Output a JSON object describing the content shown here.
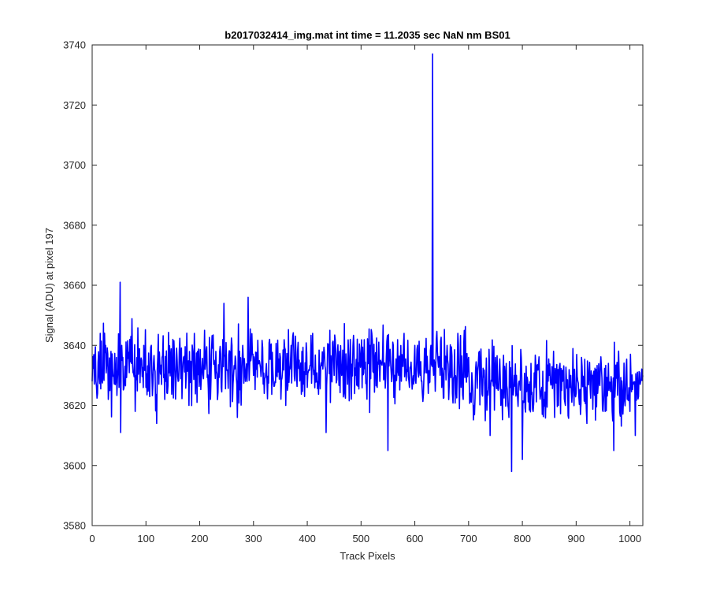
{
  "window": {
    "background": "#ffffff"
  },
  "chart_data": {
    "type": "line",
    "title": "b2017032414_img.mat int time = 11.2035 sec  NaN nm BS01",
    "xlabel": "Track Pixels",
    "ylabel": "Signal (ADU) at pixel 197",
    "xlim": [
      0,
      1024
    ],
    "ylim": [
      3580,
      3740
    ],
    "xticks": [
      0,
      100,
      200,
      300,
      400,
      500,
      600,
      700,
      800,
      900,
      1000
    ],
    "yticks": [
      3580,
      3600,
      3620,
      3640,
      3660,
      3680,
      3700,
      3720,
      3740
    ],
    "grid": false,
    "legend": "none",
    "series": [
      {
        "color": "#0000ff",
        "description_points": {
          "x": [
            0,
            5,
            10,
            15,
            20,
            25,
            30,
            35,
            40,
            45,
            50,
            52,
            53,
            55,
            60,
            70,
            80,
            90,
            100,
            110,
            120,
            130,
            140,
            150,
            160,
            170,
            180,
            190,
            200,
            210,
            220,
            230,
            240,
            245,
            250,
            260,
            270,
            280,
            285,
            290,
            300,
            310,
            320,
            330,
            340,
            350,
            360,
            370,
            380,
            390,
            400,
            410,
            420,
            430,
            435,
            440,
            450,
            460,
            470,
            480,
            490,
            500,
            510,
            520,
            530,
            540,
            550,
            560,
            570,
            580,
            590,
            600,
            610,
            620,
            625,
            630,
            633,
            635,
            640,
            650,
            660,
            670,
            680,
            690,
            700,
            710,
            720,
            730,
            740,
            750,
            760,
            770,
            775,
            780,
            785,
            790,
            800,
            810,
            820,
            830,
            840,
            850,
            860,
            870,
            880,
            890,
            900,
            910,
            920,
            930,
            940,
            950,
            960,
            970,
            980,
            990,
            1000,
            1010,
            1020,
            1024
          ],
          "y": [
            3628,
            3636,
            3624,
            3644,
            3630,
            3640,
            3622,
            3638,
            3630,
            3636,
            3626,
            3661,
            3611,
            3640,
            3628,
            3642,
            3618,
            3634,
            3626,
            3640,
            3614,
            3636,
            3624,
            3642,
            3628,
            3636,
            3620,
            3644,
            3630,
            3632,
            3622,
            3638,
            3626,
            3654,
            3632,
            3640,
            3616,
            3640,
            3628,
            3656,
            3630,
            3634,
            3624,
            3642,
            3628,
            3636,
            3620,
            3640,
            3630,
            3638,
            3626,
            3644,
            3628,
            3636,
            3611,
            3640,
            3630,
            3638,
            3624,
            3642,
            3630,
            3636,
            3628,
            3644,
            3626,
            3636,
            3605,
            3640,
            3630,
            3644,
            3626,
            3640,
            3630,
            3636,
            3624,
            3640,
            3737,
            3630,
            3642,
            3626,
            3640,
            3624,
            3644,
            3622,
            3636,
            3620,
            3638,
            3626,
            3610,
            3636,
            3620,
            3634,
            3616,
            3598,
            3630,
            3624,
            3602,
            3628,
            3618,
            3634,
            3622,
            3630,
            3616,
            3634,
            3620,
            3630,
            3624,
            3636,
            3614,
            3630,
            3624,
            3618,
            3634,
            3605,
            3630,
            3622,
            3618,
            3610,
            3628,
            3630
          ]
        }
      }
    ]
  }
}
